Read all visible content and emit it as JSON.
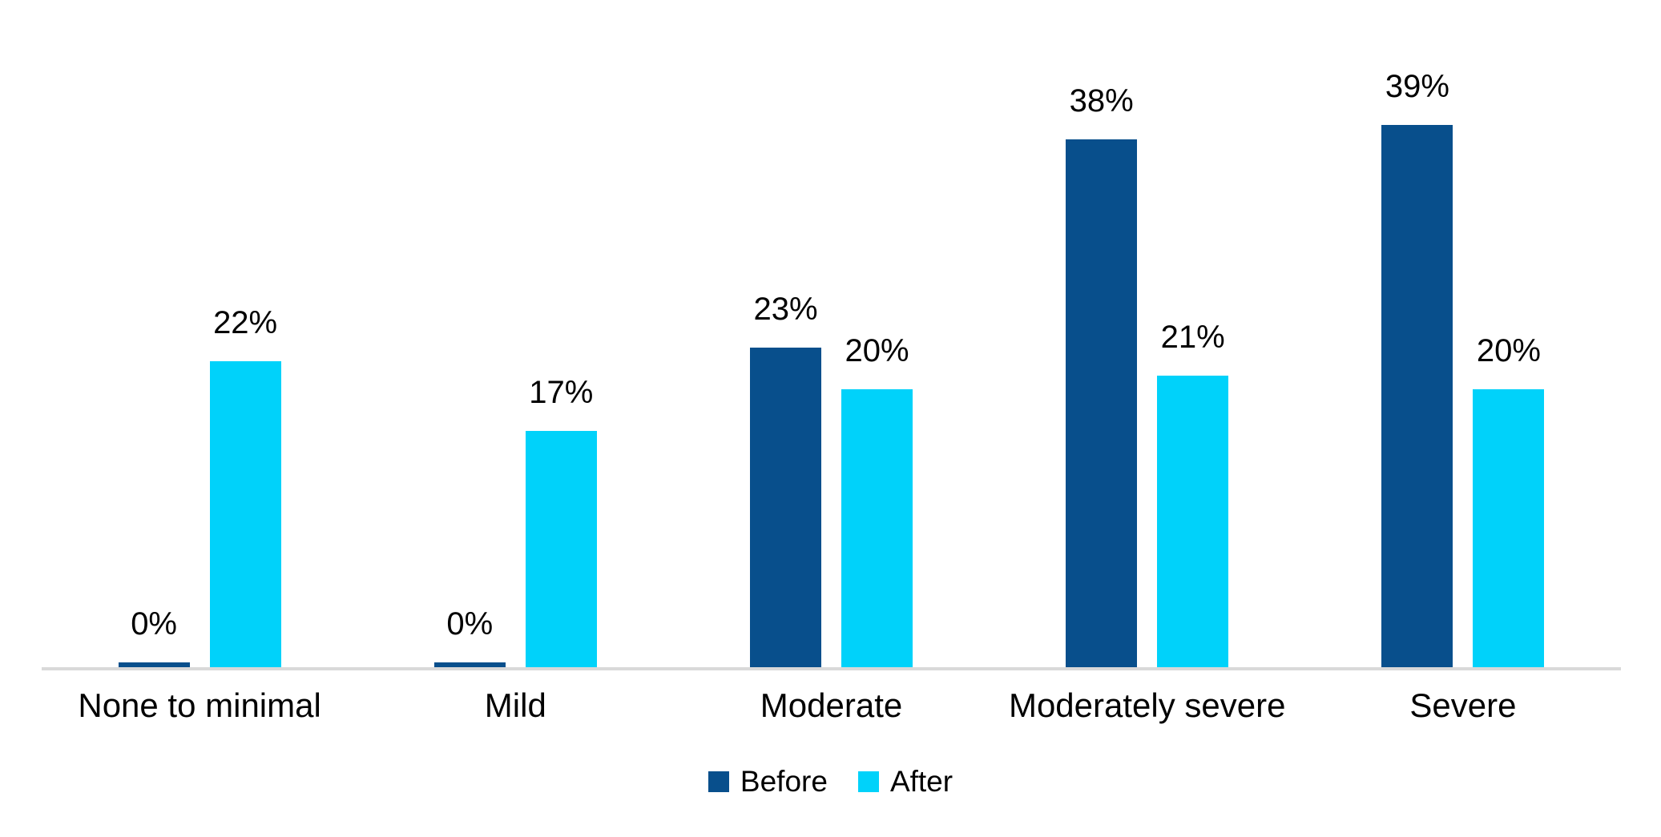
{
  "chart_data": {
    "type": "bar",
    "title": "",
    "xlabel": "",
    "ylabel": "",
    "categories": [
      "None to minimal",
      "Mild",
      "Moderate",
      "Moderately severe",
      "Severe"
    ],
    "series": [
      {
        "name": "Before",
        "color": "#084f8c",
        "values": [
          0,
          0,
          23,
          38,
          39
        ],
        "labels": [
          "0%",
          "0%",
          "23%",
          "38%",
          "39%"
        ]
      },
      {
        "name": "After",
        "color": "#00d2fa",
        "values": [
          22,
          17,
          20,
          21,
          20
        ],
        "labels": [
          "22%",
          "17%",
          "20%",
          "21%",
          "20%"
        ]
      }
    ],
    "value_unit": "%",
    "ylim": [
      0,
      45
    ],
    "grid": false,
    "y_axis_visible": false,
    "x_axis_line_color": "#d9d9d9",
    "data_labels_visible": true,
    "legend_position": "bottom"
  }
}
